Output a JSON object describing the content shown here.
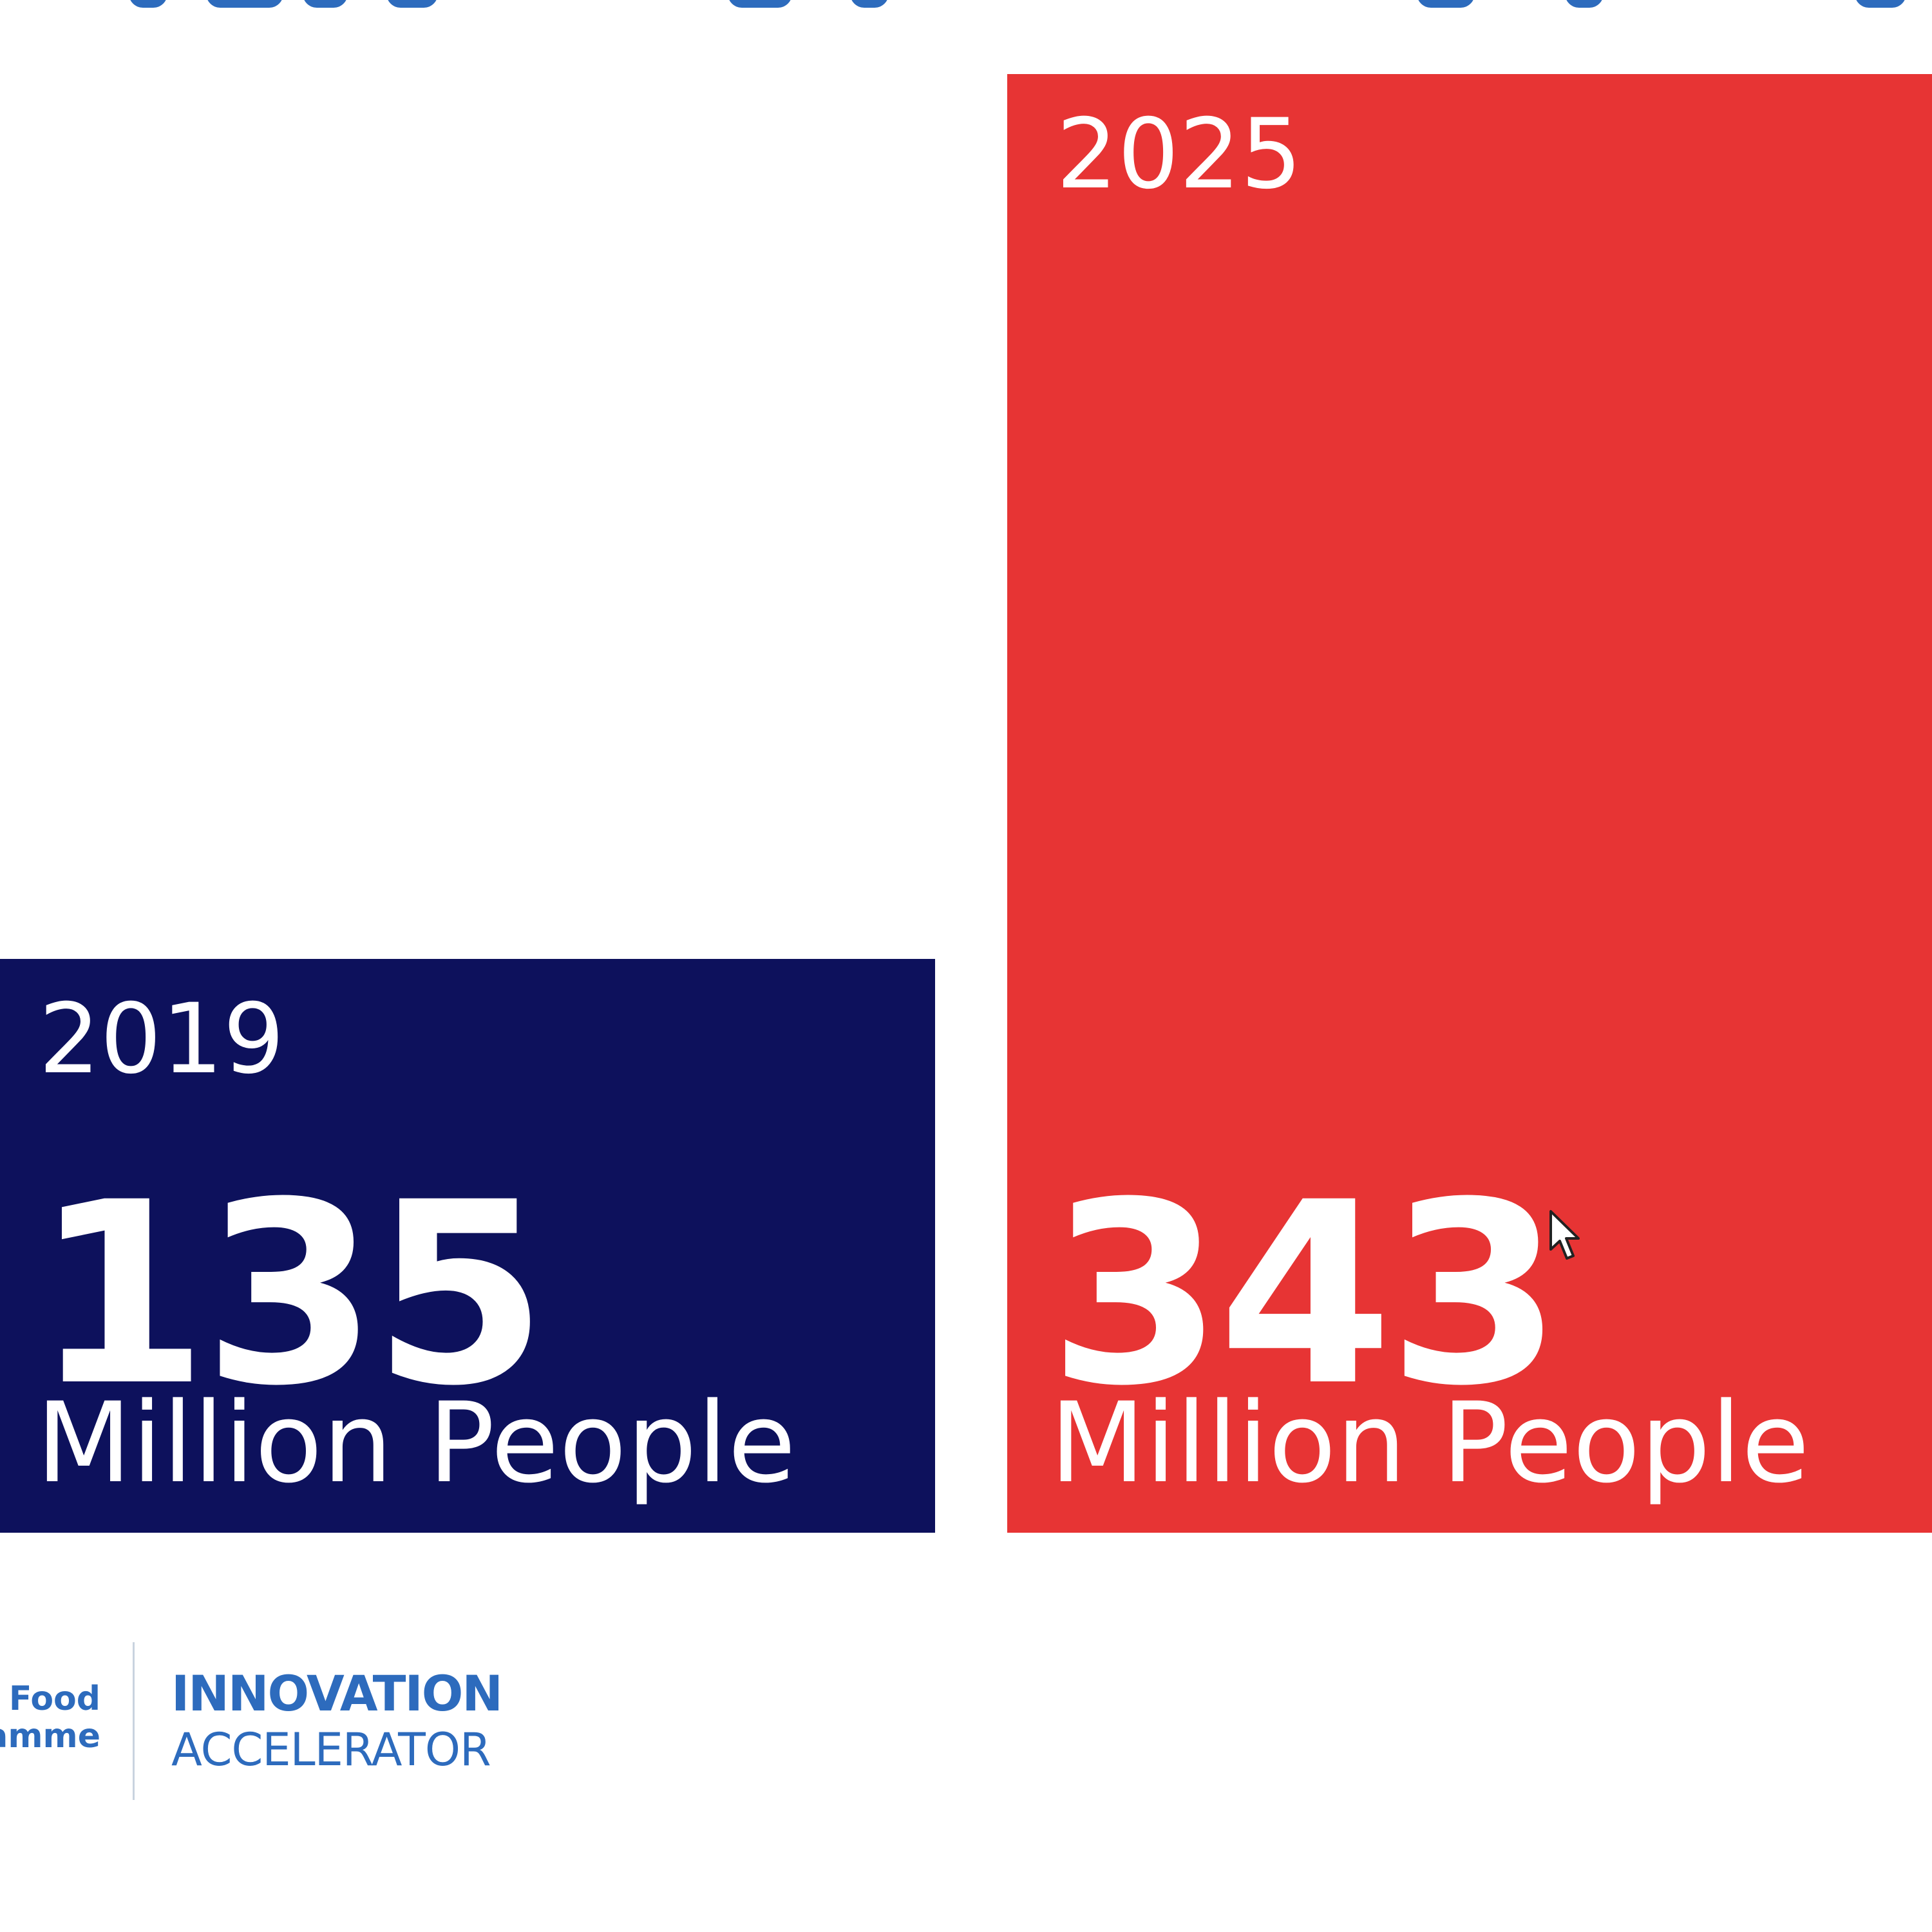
{
  "chart_data": {
    "type": "bar",
    "categories": [
      "2019",
      "2025"
    ],
    "values": [
      135,
      343
    ],
    "unit_label": "Million People",
    "colors": [
      "#0d115c",
      "#e73434"
    ],
    "ylim": [
      0,
      343
    ],
    "grid": false,
    "legend": "none"
  },
  "logo": {
    "left_line_1": "World Food",
    "left_line_2": "Programme",
    "brand_line_1": "INNOVATION",
    "brand_line_2": "ACCELERATOR"
  },
  "colors": {
    "brand_blue": "#2d6bbd",
    "background": "#ffffff"
  },
  "icons": {
    "pointer": "mouse-pointer-icon"
  }
}
